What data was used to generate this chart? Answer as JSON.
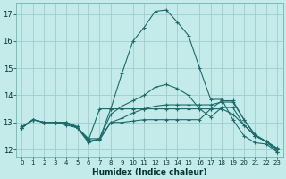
{
  "xlabel": "Humidex (Indice chaleur)",
  "ylabel": "",
  "bg_color": "#c5eaea",
  "grid_color": "#9ecece",
  "line_color": "#1a6b6b",
  "xlim": [
    -0.5,
    23.5
  ],
  "ylim": [
    11.75,
    17.4
  ],
  "xticks": [
    0,
    1,
    2,
    3,
    4,
    5,
    6,
    7,
    8,
    9,
    10,
    11,
    12,
    13,
    14,
    15,
    16,
    17,
    18,
    19,
    20,
    21,
    22,
    23
  ],
  "yticks": [
    12,
    13,
    14,
    15,
    16,
    17
  ],
  "series": [
    [
      12.8,
      13.1,
      13.0,
      13.0,
      13.0,
      12.8,
      12.4,
      12.4,
      13.5,
      14.8,
      16.0,
      16.5,
      17.1,
      17.15,
      16.7,
      16.2,
      15.0,
      13.85,
      13.85,
      13.1,
      12.5,
      12.25,
      12.2,
      11.9
    ],
    [
      12.85,
      13.1,
      13.0,
      13.0,
      13.0,
      12.85,
      12.3,
      12.35,
      13.0,
      13.15,
      13.35,
      13.5,
      13.6,
      13.65,
      13.65,
      13.65,
      13.65,
      13.65,
      13.75,
      13.75,
      13.1,
      12.55,
      12.3,
      12.05
    ],
    [
      12.8,
      13.1,
      13.0,
      13.0,
      13.0,
      12.8,
      12.3,
      12.4,
      13.0,
      13.0,
      13.05,
      13.1,
      13.1,
      13.1,
      13.1,
      13.1,
      13.1,
      13.5,
      13.8,
      13.8,
      13.1,
      12.5,
      12.3,
      11.9
    ],
    [
      12.8,
      13.1,
      13.0,
      13.0,
      12.9,
      12.8,
      12.35,
      13.5,
      13.5,
      13.5,
      13.5,
      13.5,
      13.5,
      13.5,
      13.5,
      13.5,
      13.5,
      13.5,
      13.5,
      13.3,
      12.9,
      12.5,
      12.3,
      12.0
    ],
    [
      12.8,
      13.1,
      13.0,
      13.0,
      12.95,
      12.8,
      12.25,
      12.4,
      13.3,
      13.6,
      13.8,
      14.0,
      14.3,
      14.4,
      14.25,
      14.0,
      13.5,
      13.2,
      13.55,
      13.55,
      12.9,
      12.5,
      12.3,
      12.0
    ]
  ]
}
